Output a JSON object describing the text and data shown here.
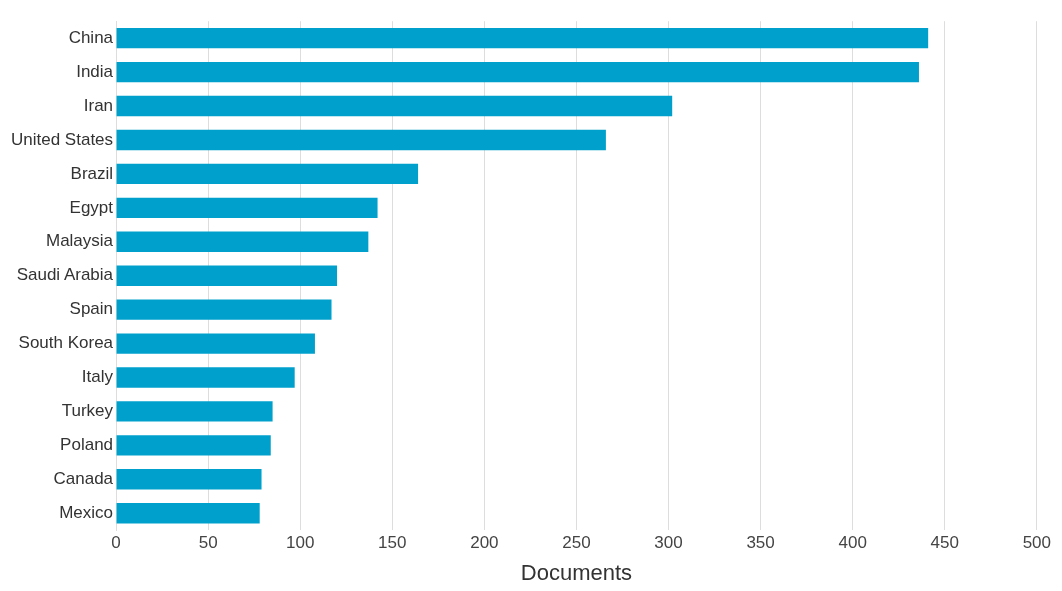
{
  "chart_data": {
    "type": "bar",
    "orientation": "horizontal",
    "xlabel": "Documents",
    "categories": [
      "China",
      "India",
      "Iran",
      "United States",
      "Brazil",
      "Egypt",
      "Malaysia",
      "Saudi Arabia",
      "Spain",
      "South Korea",
      "Italy",
      "Turkey",
      "Poland",
      "Canada",
      "Mexico"
    ],
    "values": [
      441,
      436,
      302,
      266,
      164,
      142,
      137,
      120,
      117,
      108,
      97,
      85,
      84,
      79,
      78
    ],
    "color": "#00a0cc",
    "xlim": [
      0,
      500
    ],
    "xticks": [
      0,
      50,
      100,
      150,
      200,
      250,
      300,
      350,
      400,
      450,
      500
    ],
    "grid": "x",
    "legend": false
  }
}
